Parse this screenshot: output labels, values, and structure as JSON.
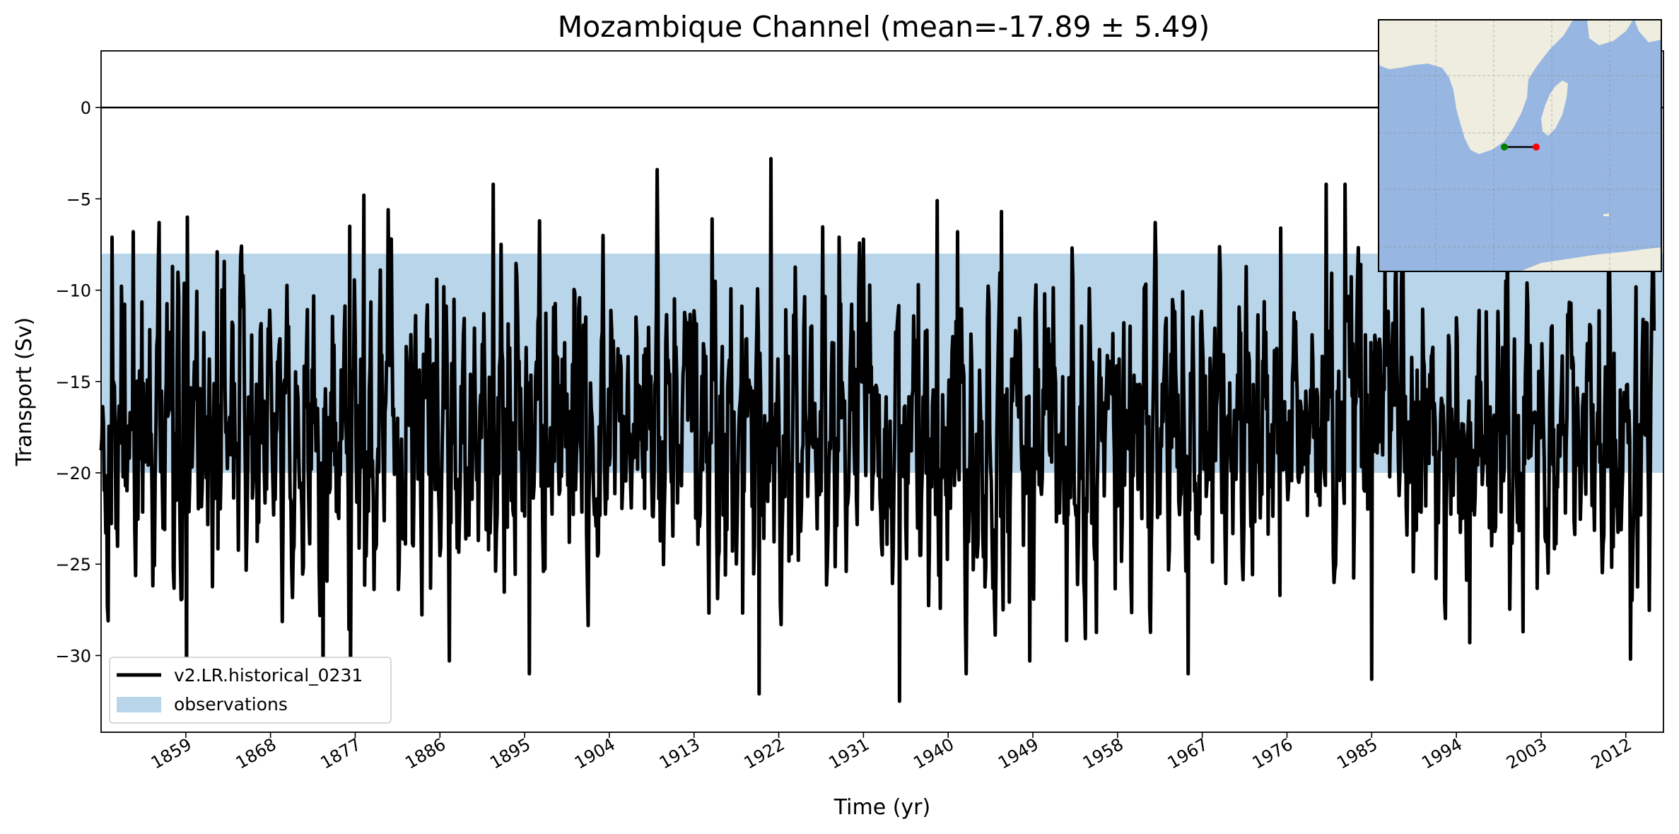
{
  "chart_data": {
    "type": "line",
    "title": "Mozambique Channel (mean=-17.89 ± 5.49)",
    "xlabel": "Time (yr)",
    "ylabel": "Transport (Sv)",
    "xlim": [
      1850,
      2016
    ],
    "ylim": [
      -34.2,
      3.1
    ],
    "xticks": [
      1859,
      1868,
      1877,
      1886,
      1895,
      1904,
      1913,
      1922,
      1931,
      1940,
      1949,
      1958,
      1967,
      1976,
      1985,
      1994,
      2003,
      2012
    ],
    "yticks": [
      0,
      -5,
      -10,
      -15,
      -20,
      -25,
      -30
    ],
    "x_tick_rotation_deg": 30,
    "grid": false,
    "legend_placement": "lower-left",
    "reference_line_y": 0,
    "observations_band": {
      "label": "observations",
      "ymin": -20,
      "ymax": -8,
      "color": "#b8d5ea"
    },
    "series": [
      {
        "name": "v2.LR.historical_0231",
        "color": "#000000",
        "x_start": 1850,
        "x_end": 2015,
        "amplitude_range": [
          -32.5,
          -2.8
        ],
        "mean": -17.89,
        "std": 5.49,
        "peaks": [
          [
            1851.2,
            -7.1
          ],
          [
            1853.4,
            -6.8
          ],
          [
            1857.6,
            -8.7
          ],
          [
            1859.2,
            -6.0
          ],
          [
            1862.3,
            -7.9
          ],
          [
            1876.4,
            -6.5
          ],
          [
            1877.9,
            -4.8
          ],
          [
            1880.5,
            -5.6
          ],
          [
            1891.7,
            -4.2
          ],
          [
            1896.6,
            -6.2
          ],
          [
            1909.1,
            -3.4
          ],
          [
            1914.9,
            -6.1
          ],
          [
            1921.2,
            -2.8
          ],
          [
            1928.4,
            -7.1
          ],
          [
            1938.8,
            -5.1
          ],
          [
            1941.0,
            -6.8
          ],
          [
            1945.7,
            -5.7
          ],
          [
            1975.3,
            -6.6
          ],
          [
            1980.2,
            -4.2
          ],
          [
            1982.2,
            -4.2
          ]
        ],
        "troughs": [
          [
            1859.1,
            -32.2
          ],
          [
            1873.6,
            -31.6
          ],
          [
            1876.5,
            -31.2
          ],
          [
            1895.5,
            -31.0
          ],
          [
            1919.9,
            -32.1
          ],
          [
            1934.8,
            -32.5
          ],
          [
            1948.7,
            -30.3
          ],
          [
            1985.0,
            -31.3
          ],
          [
            1995.4,
            -29.3
          ],
          [
            2001.1,
            -28.7
          ],
          [
            2012.5,
            -30.2
          ]
        ]
      }
    ],
    "inset_map": {
      "marker_start_color": "#008000",
      "marker_end_color": "#ff0000",
      "land_color": "#efeddf",
      "ocean_color": "#97b6e1"
    }
  }
}
